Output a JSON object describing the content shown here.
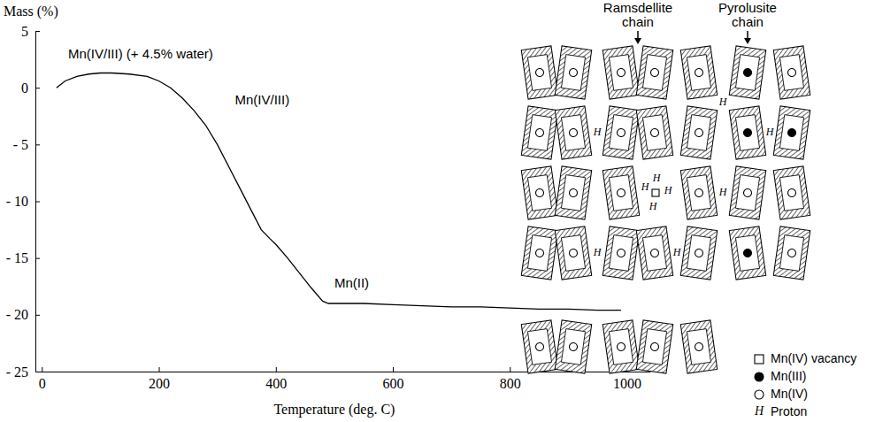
{
  "chart_data": {
    "type": "line",
    "x_label": "Temperature (deg. C)",
    "y_label": "Mass (%)",
    "xlim": [
      -11,
      1040
    ],
    "ylim": [
      -25,
      5
    ],
    "xticks": [
      0,
      200,
      400,
      600,
      800,
      1000
    ],
    "yticks": [
      5,
      0,
      {
        "value": -5,
        "label": "- 5"
      },
      {
        "value": -10,
        "label": "- 10"
      },
      {
        "value": -15,
        "label": "- 15"
      },
      {
        "value": -20,
        "label": "- 20"
      },
      {
        "value": -25,
        "label": "- 25"
      }
    ],
    "x": [
      25,
      40,
      60,
      80,
      100,
      120,
      150,
      180,
      200,
      220,
      240,
      260,
      280,
      300,
      320,
      340,
      360,
      375,
      390,
      400,
      420,
      440,
      460,
      480,
      490,
      500,
      550,
      600,
      650,
      700,
      750,
      800,
      850,
      900,
      950,
      990
    ],
    "values": [
      0.0,
      0.6,
      1.0,
      1.2,
      1.3,
      1.3,
      1.2,
      1.0,
      0.6,
      0.0,
      -0.9,
      -2.0,
      -3.3,
      -5.0,
      -7.0,
      -9.0,
      -11.0,
      -12.5,
      -13.3,
      -13.8,
      -15.0,
      -16.3,
      -17.6,
      -18.8,
      -19.0,
      -19.0,
      -19.0,
      -19.1,
      -19.2,
      -19.3,
      -19.3,
      -19.4,
      -19.5,
      -19.5,
      -19.6,
      -19.6
    ],
    "color": "#000000",
    "annotations": [
      {
        "text": "Mn(IV/III) (+ 4.5% water)",
        "x": 45,
        "y": 2.6
      },
      {
        "text": "Mn(IV/III)",
        "x": 330,
        "y": -1.5
      },
      {
        "text": "Mn(II)",
        "x": 500,
        "y": -17.6
      }
    ]
  },
  "diagram": {
    "chain_labels": [
      "Ramsdellite chain",
      "Pyrolusite chain"
    ],
    "proton_symbol": "H",
    "key": [
      "Mn(IV) vacancy",
      "Mn(III)",
      "Mn(IV)",
      "Proton"
    ]
  }
}
